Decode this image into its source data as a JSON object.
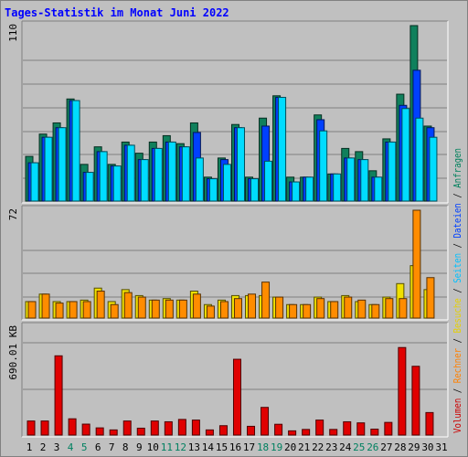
{
  "title": "Tages-Statistik im Monat Juni 2022",
  "legend": [
    {
      "label": "Volumen",
      "color": "#cc0000"
    },
    {
      "label": "Rechner",
      "color": "#ff8000"
    },
    {
      "label": "Besuche",
      "color": "#e6d000"
    },
    {
      "label": "Seiten",
      "color": "#00c0ff"
    },
    {
      "label": "Dateien",
      "color": "#0040ff"
    },
    {
      "label": "Anfragen",
      "color": "#00805c"
    }
  ],
  "legend_separator": "/",
  "chart_data": {
    "type": "bar",
    "categories": [
      "1",
      "2",
      "3",
      "4",
      "5",
      "6",
      "7",
      "8",
      "9",
      "10",
      "11",
      "12",
      "13",
      "14",
      "15",
      "16",
      "17",
      "18",
      "19",
      "20",
      "21",
      "22",
      "23",
      "24",
      "25",
      "26",
      "27",
      "28",
      "29",
      "30",
      "31"
    ],
    "weekend_days": [
      "4",
      "5",
      "11",
      "12",
      "18",
      "19",
      "25",
      "26"
    ],
    "panels": [
      {
        "name": "top",
        "max_label": "110",
        "max": 110,
        "series": [
          {
            "name": "Anfragen",
            "color": "#10805c",
            "values": [
              28,
              42,
              49,
              64,
              23,
              34,
              23,
              37,
              30,
              37,
              41,
              36,
              49,
              15,
              27,
              48,
              15,
              52,
              66,
              15,
              15,
              54,
              17,
              33,
              31,
              19,
              39,
              67,
              110,
              47,
              0
            ]
          },
          {
            "name": "Dateien",
            "color": "#0040ff",
            "values": [
              24,
              40,
              46,
              63,
              18,
              31,
              22,
              35,
              26,
              33,
              37,
              34,
              43,
              14,
              26,
              46,
              14,
              47,
              65,
              12,
              15,
              51,
              17,
              27,
              26,
              15,
              37,
              60,
              82,
              46,
              0
            ]
          },
          {
            "name": "Seiten",
            "color": "#00dcff",
            "values": [
              24,
              40,
              46,
              63,
              18,
              31,
              22,
              35,
              26,
              33,
              37,
              34,
              27,
              14,
              23,
              46,
              14,
              25,
              65,
              12,
              15,
              44,
              17,
              27,
              26,
              15,
              37,
              58,
              52,
              40,
              0
            ]
          }
        ]
      },
      {
        "name": "middle",
        "max_label": "72",
        "max": 72,
        "series": [
          {
            "name": "Besuche",
            "color": "#f0e000",
            "values": [
              11,
              16,
              11,
              11,
              12,
              20,
              11,
              19,
              15,
              12,
              13,
              12,
              18,
              9,
              12,
              15,
              15,
              15,
              14,
              9,
              9,
              14,
              11,
              15,
              11,
              9,
              14,
              23,
              35,
              19,
              0
            ]
          },
          {
            "name": "Rechner",
            "color": "#ff8c00",
            "values": [
              11,
              16,
              10,
              11,
              11,
              18,
              9,
              17,
              14,
              12,
              12,
              12,
              16,
              8,
              11,
              13,
              16,
              24,
              14,
              9,
              9,
              13,
              11,
              14,
              12,
              9,
              13,
              13,
              72,
              27,
              0
            ]
          }
        ]
      },
      {
        "name": "bottom",
        "max_label": "690.01 KB",
        "max": 690.01,
        "series": [
          {
            "name": "Volumen",
            "color": "#e00000",
            "values": [
              90,
              90,
              507,
              104,
              70,
              46,
              33,
              90,
              44,
              90,
              85,
              100,
              96,
              33,
              60,
              485,
              56,
              177,
              69,
              27,
              36,
              96,
              36,
              85,
              78,
              38,
              81,
              560,
              440,
              144,
              0
            ]
          }
        ]
      }
    ]
  }
}
